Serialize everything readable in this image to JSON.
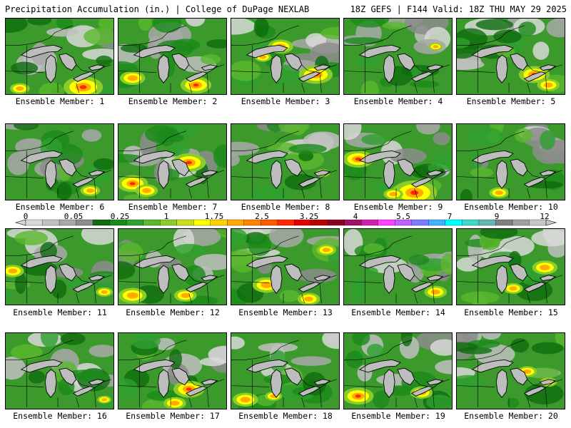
{
  "header": {
    "title_left": "Precipitation Accumulation (in.) | College of DuPage NEXLAB",
    "title_right": "18Z GEFS | F144 Valid: 18Z THU MAY 29 2025"
  },
  "colorbar": {
    "tick_labels": [
      "0",
      "0.05",
      "0.25",
      "1",
      "1.75",
      "2.5",
      "3.25",
      "4",
      "5.5",
      "7",
      "9",
      "12"
    ],
    "colors": [
      "#d8d8d8",
      "#c0c0c0",
      "#a8a8a8",
      "#8c8c8c",
      "#0e6c0e",
      "#1a8a1a",
      "#2ea02e",
      "#5ab82e",
      "#8ccc2a",
      "#c8e01e",
      "#ffff00",
      "#ffd200",
      "#ffaa00",
      "#ff8200",
      "#ff5a00",
      "#ff2800",
      "#e00000",
      "#b40000",
      "#880020",
      "#a0106a",
      "#d020b0",
      "#ff40ff",
      "#c060ff",
      "#7a7aff",
      "#40b0ff",
      "#00ffff",
      "#40d8c8",
      "#60b8b0",
      "#808080",
      "#a0a0a0",
      "#c8c8c8"
    ]
  },
  "panels": [
    {
      "label": "Ensemble Member: 1",
      "heavy": [
        [
          110,
          98,
          28
        ],
        [
          20,
          100,
          14
        ]
      ]
    },
    {
      "label": "Ensemble Member: 2",
      "heavy": [
        [
          20,
          85,
          18
        ],
        [
          110,
          95,
          22
        ]
      ]
    },
    {
      "label": "Ensemble Member: 3",
      "heavy": [
        [
          70,
          40,
          18
        ],
        [
          120,
          80,
          24
        ],
        [
          45,
          55,
          12
        ]
      ]
    },
    {
      "label": "Ensemble Member: 4",
      "heavy": [
        [
          130,
          40,
          10
        ]
      ]
    },
    {
      "label": "Ensemble Member: 5",
      "heavy": [
        [
          110,
          80,
          22
        ],
        [
          130,
          95,
          16
        ]
      ]
    },
    {
      "label": "Ensemble Member: 6",
      "heavy": [
        [
          120,
          95,
          14
        ]
      ]
    },
    {
      "label": "Ensemble Member: 7",
      "heavy": [
        [
          20,
          85,
          22
        ],
        [
          100,
          55,
          24
        ],
        [
          40,
          95,
          16
        ]
      ]
    },
    {
      "label": "Ensemble Member: 8",
      "heavy": [
        [
          130,
          70,
          10
        ]
      ]
    },
    {
      "label": "Ensemble Member: 9",
      "heavy": [
        [
          20,
          50,
          22
        ],
        [
          100,
          98,
          32
        ],
        [
          70,
          100,
          14
        ]
      ]
    },
    {
      "label": "Ensemble Member: 10",
      "heavy": [
        [
          60,
          98,
          14
        ]
      ]
    },
    {
      "label": "Ensemble Member: 11",
      "heavy": [
        [
          10,
          60,
          16
        ],
        [
          140,
          90,
          12
        ]
      ]
    },
    {
      "label": "Ensemble Member: 12",
      "heavy": [
        [
          20,
          95,
          20
        ],
        [
          95,
          95,
          16
        ]
      ]
    },
    {
      "label": "Ensemble Member: 13",
      "heavy": [
        [
          135,
          30,
          14
        ],
        [
          50,
          80,
          20
        ],
        [
          110,
          100,
          16
        ]
      ]
    },
    {
      "label": "Ensemble Member: 14",
      "heavy": [
        [
          130,
          90,
          16
        ]
      ]
    },
    {
      "label": "Ensemble Member: 15",
      "heavy": [
        [
          125,
          55,
          18
        ],
        [
          80,
          85,
          14
        ]
      ]
    },
    {
      "label": "Ensemble Member: 16",
      "heavy": [
        [
          140,
          95,
          10
        ]
      ]
    },
    {
      "label": "Ensemble Member: 17",
      "heavy": [
        [
          100,
          80,
          22
        ],
        [
          80,
          100,
          16
        ]
      ]
    },
    {
      "label": "Ensemble Member: 18",
      "heavy": [
        [
          20,
          95,
          18
        ],
        [
          60,
          90,
          12
        ]
      ]
    },
    {
      "label": "Ensemble Member: 19",
      "heavy": [
        [
          20,
          90,
          22
        ],
        [
          110,
          85,
          16
        ]
      ]
    },
    {
      "label": "Ensemble Member: 20",
      "heavy": [
        [
          100,
          55,
          14
        ],
        [
          130,
          70,
          12
        ]
      ]
    }
  ]
}
